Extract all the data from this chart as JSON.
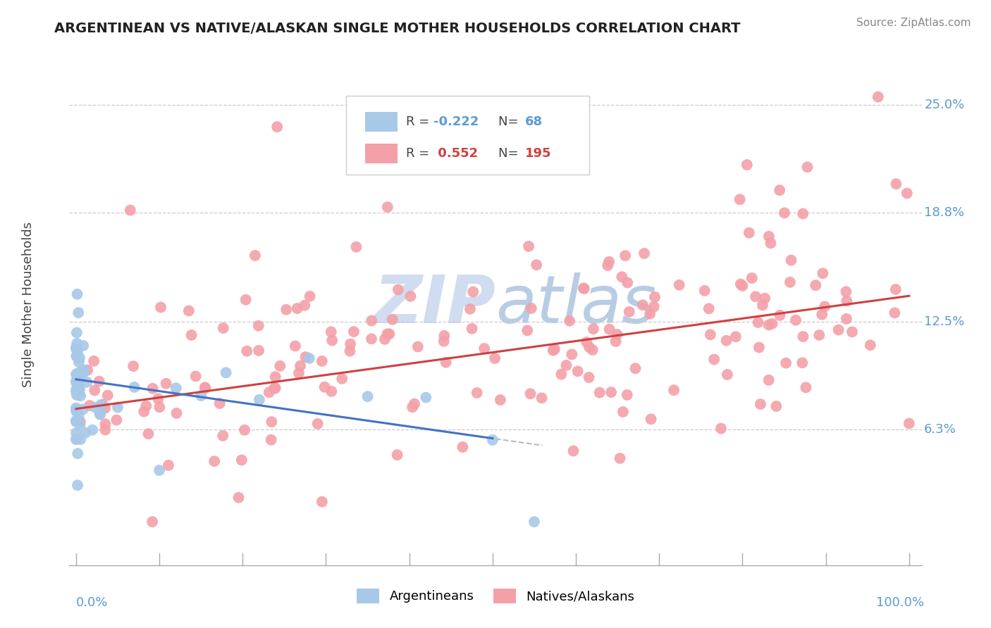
{
  "title": "ARGENTINEAN VS NATIVE/ALASKAN SINGLE MOTHER HOUSEHOLDS CORRELATION CHART",
  "source": "Source: ZipAtlas.com",
  "ylabel": "Single Mother Households",
  "ytick_labels": [
    "6.3%",
    "12.5%",
    "18.8%",
    "25.0%"
  ],
  "ytick_values": [
    0.063,
    0.125,
    0.188,
    0.25
  ],
  "xlim": [
    0.0,
    1.0
  ],
  "ylim": [
    0.0,
    0.28
  ],
  "legend_blue_r": "-0.222",
  "legend_blue_n": "68",
  "legend_pink_r": "0.552",
  "legend_pink_n": "195",
  "blue_color": "#A8C8E8",
  "pink_color": "#F4A0A8",
  "blue_line_color": "#4472C4",
  "pink_line_color": "#D04040",
  "grid_color": "#CCCCCC",
  "watermark_color": "#D0DCF0"
}
